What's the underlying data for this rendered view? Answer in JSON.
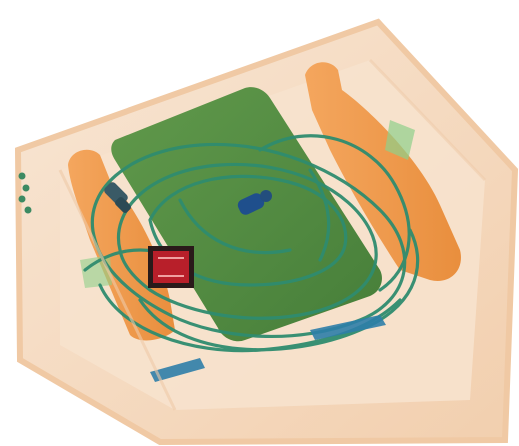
{
  "image": {
    "kind": "x-ray baggage scan",
    "background": "#ffffff",
    "colors": {
      "tray": "#f6d9bf",
      "tray_edge": "#f1c8a3",
      "bottle": "#f29a45",
      "bottle_dark": "#e07f2a",
      "laptop_block": "#4f8a3c",
      "laptop_block_dark": "#3d7630",
      "cable": "#2f8c6f",
      "metal_blue": "#1f4f8c",
      "battery_red": "#b81f2a",
      "battery_dark": "#2a1a1a"
    }
  }
}
